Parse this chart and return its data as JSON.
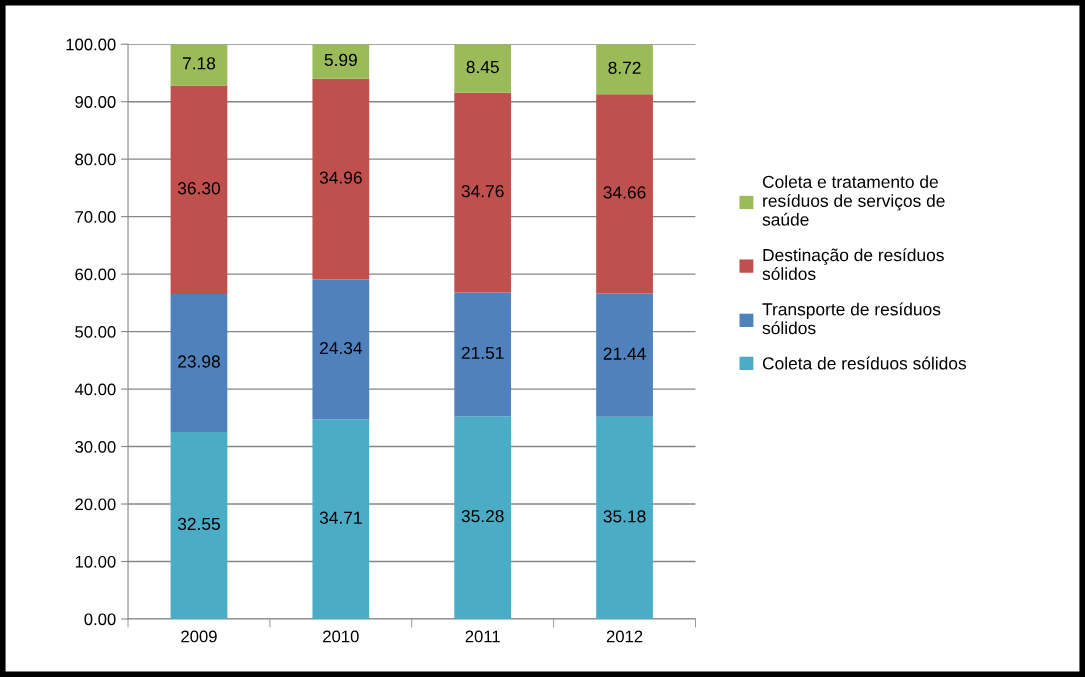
{
  "chart_data": {
    "type": "bar",
    "stacked": true,
    "categories": [
      "2009",
      "2010",
      "2011",
      "2012"
    ],
    "series": [
      {
        "name": "Coleta de resíduos sólidos",
        "color": "#4bacc6",
        "values": [
          32.55,
          34.71,
          35.28,
          35.18
        ],
        "value_labels": [
          "32.55",
          "34.71",
          "35.28",
          "35.18"
        ]
      },
      {
        "name": "Transporte de resíduos sólidos",
        "color": "#4f81bd",
        "values": [
          23.98,
          24.34,
          21.51,
          21.44
        ],
        "value_labels": [
          "23.98",
          "24.34",
          "21.51",
          "21.44"
        ]
      },
      {
        "name": "Destinação de resíduos sólidos",
        "color": "#c0504d",
        "values": [
          36.3,
          34.96,
          34.76,
          34.66
        ],
        "value_labels": [
          "36.30",
          "34.96",
          "34.76",
          "34.66"
        ]
      },
      {
        "name": "Coleta e tratamento de resíduos de serviços de saúde",
        "color": "#9bbb59",
        "values": [
          7.18,
          5.99,
          8.45,
          8.72
        ],
        "value_labels": [
          "7.18",
          "5.99",
          "8.45",
          "8.72"
        ]
      }
    ],
    "ylim": [
      0,
      100
    ],
    "yticks": [
      {
        "value": 0,
        "label": "0.00"
      },
      {
        "value": 10,
        "label": "10.00"
      },
      {
        "value": 20,
        "label": "20.00"
      },
      {
        "value": 30,
        "label": "30.00"
      },
      {
        "value": 40,
        "label": "40.00"
      },
      {
        "value": 50,
        "label": "50.00"
      },
      {
        "value": 60,
        "label": "60.00"
      },
      {
        "value": 70,
        "label": "70.00"
      },
      {
        "value": 80,
        "label": "80.00"
      },
      {
        "value": 90,
        "label": "90.00"
      },
      {
        "value": 100,
        "label": "100.00"
      }
    ],
    "grid": "y",
    "legend": "right"
  }
}
